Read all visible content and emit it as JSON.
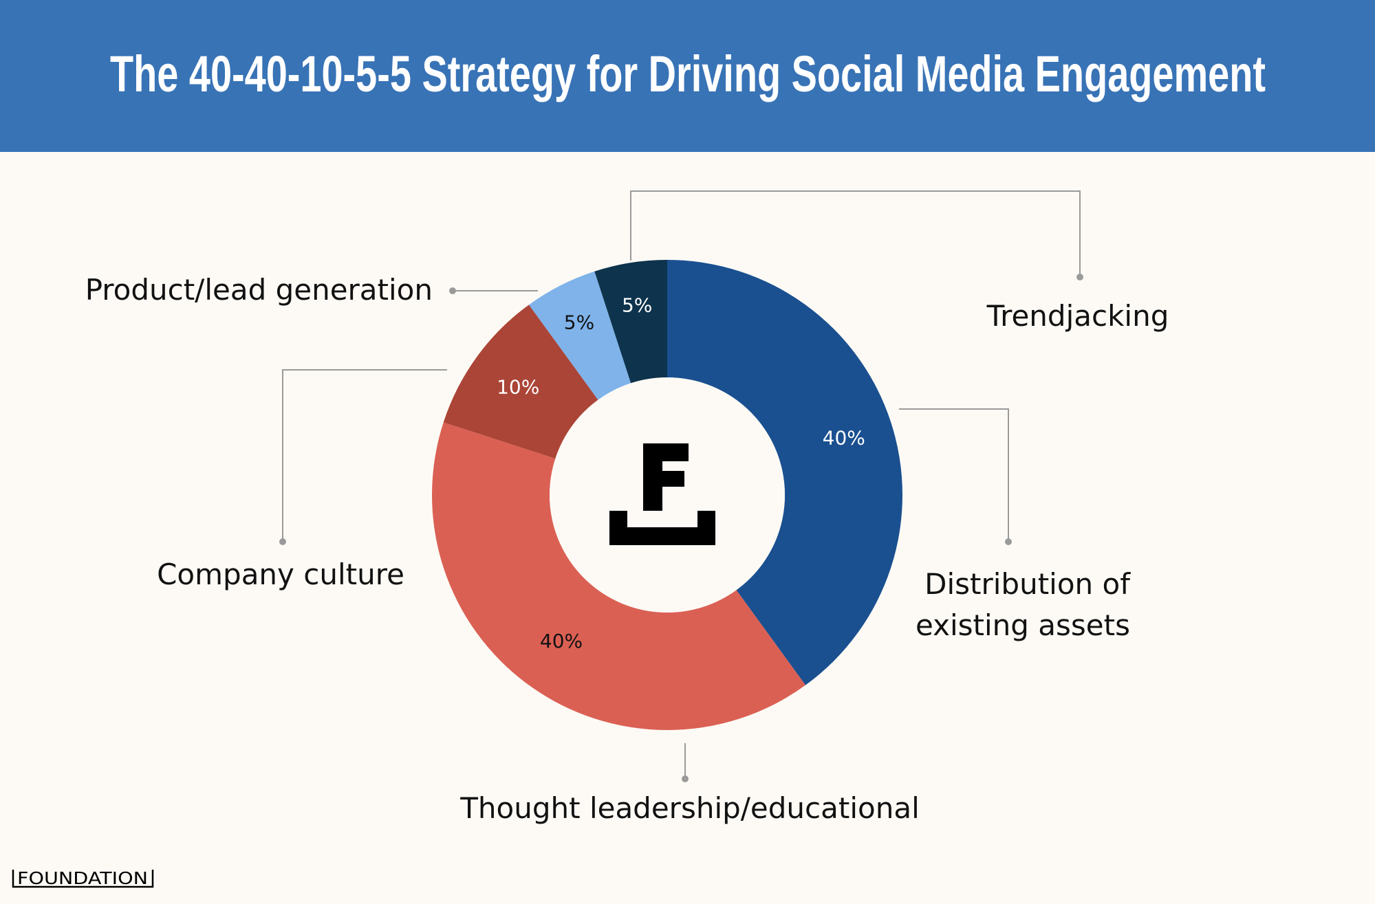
{
  "header": {
    "title": "The 40-40-10-5-5 Strategy for Driving Social Media Engagement",
    "background": "#3873b6"
  },
  "background": "#fdfaf5",
  "chart_data": {
    "type": "pie",
    "variant": "donut",
    "title": "The 40-40-10-5-5 Strategy for Driving Social Media Engagement",
    "unit": "%",
    "slices": [
      {
        "label": "Distribution of existing assets",
        "lines": [
          "Distribution of",
          "existing assets"
        ],
        "value": 40,
        "value_label": "40%",
        "color": "#1a5090",
        "text_color": "#ffffff"
      },
      {
        "label": "Thought leadership/educational",
        "lines": [
          "Thought leadership/educational"
        ],
        "value": 40,
        "value_label": "40%",
        "color": "#db6054",
        "text_color": "#111111"
      },
      {
        "label": "Company culture",
        "lines": [
          "Company culture"
        ],
        "value": 10,
        "value_label": "10%",
        "color": "#ab4537",
        "text_color": "#ffffff"
      },
      {
        "label": "Product/lead generation",
        "lines": [
          "Product/lead generation"
        ],
        "value": 5,
        "value_label": "5%",
        "color": "#7fb3ea",
        "text_color": "#111111"
      },
      {
        "label": "Trendjacking",
        "lines": [
          "Trendjacking"
        ],
        "value": 5,
        "value_label": "5%",
        "color": "#0e334c",
        "text_color": "#ffffff"
      }
    ],
    "center_logo": "foundation-f-logo"
  },
  "footer": {
    "logo_text": "FOUNDATION"
  }
}
